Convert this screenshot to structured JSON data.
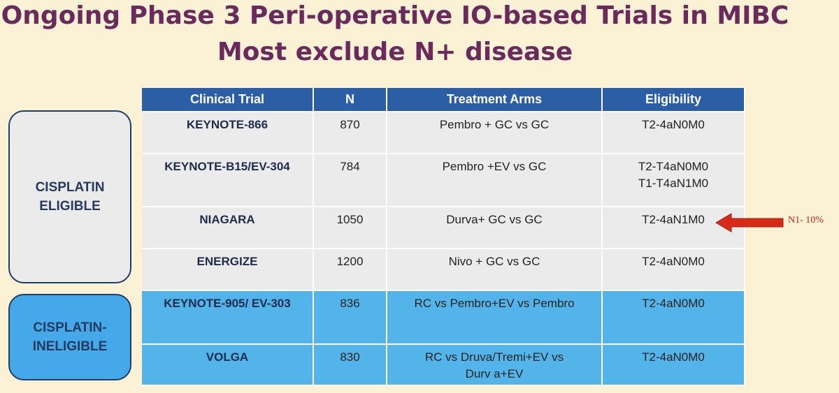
{
  "title": {
    "line1": "Ongoing Phase 3 Peri-operative IO-based Trials in MIBC",
    "line2": "Most exclude N+ disease"
  },
  "groups": {
    "eligible": {
      "line1": "CISPLATIN",
      "line2": "ELIGIBLE"
    },
    "ineligible": {
      "line1": "CISPLATIN-",
      "line2": "INELIGIBLE"
    }
  },
  "table": {
    "headers": [
      "Clinical Trial",
      "N",
      "Treatment Arms",
      "Eligibility"
    ],
    "rows": [
      {
        "trial": "KEYNOTE-866",
        "n": "870",
        "arms": "Pembro + GC vs GC",
        "elig1": "T2-4aN0M0",
        "elig2": ""
      },
      {
        "trial": "KEYNOTE-B15/EV-304",
        "n": "784",
        "arms": "Pembro +EV vs GC",
        "elig1": "T2-T4aN0M0",
        "elig2": "T1-T4aN1M0"
      },
      {
        "trial": "NIAGARA",
        "n": "1050",
        "arms": "Durva+ GC vs GC",
        "elig1": "T2-4aN1M0",
        "elig2": ""
      },
      {
        "trial": "ENERGIZE",
        "n": "1200",
        "arms": "Nivo + GC vs GC",
        "elig1": "T2-4aN0M0",
        "elig2": ""
      },
      {
        "trial": "KEYNOTE-905/ EV-303",
        "n": "836",
        "arms": "RC vs Pembro+EV vs Pembro",
        "elig1": "T2-4aN0M0",
        "elig2": ""
      },
      {
        "trial": "VOLGA",
        "n": "830",
        "arms": "RC vs Druva/Tremi+EV vs Durv a+EV",
        "elig1": "T2-4aN0M0",
        "elig2": ""
      }
    ]
  },
  "annotation": {
    "label": "N1- 10%",
    "color": "#cc2216",
    "icon": "left-arrow-icon"
  }
}
